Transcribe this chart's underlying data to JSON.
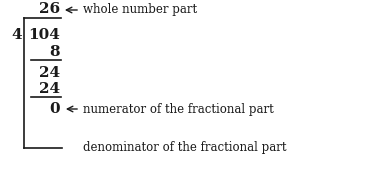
{
  "bg_color": "#ffffff",
  "text_color": "#1a1a1a",
  "quotient": "26",
  "divisor": "4",
  "dividend": "104",
  "step1_sub": "8",
  "step1_rem": "24",
  "step2_sub": "24",
  "remainder": "0",
  "label_whole": "whole number part",
  "label_numerator": "numerator of the fractional part",
  "label_denominator": "denominator of the fractional part",
  "font_size_main": 11,
  "font_size_label": 8.5,
  "arrow_color": "#1a1a1a"
}
